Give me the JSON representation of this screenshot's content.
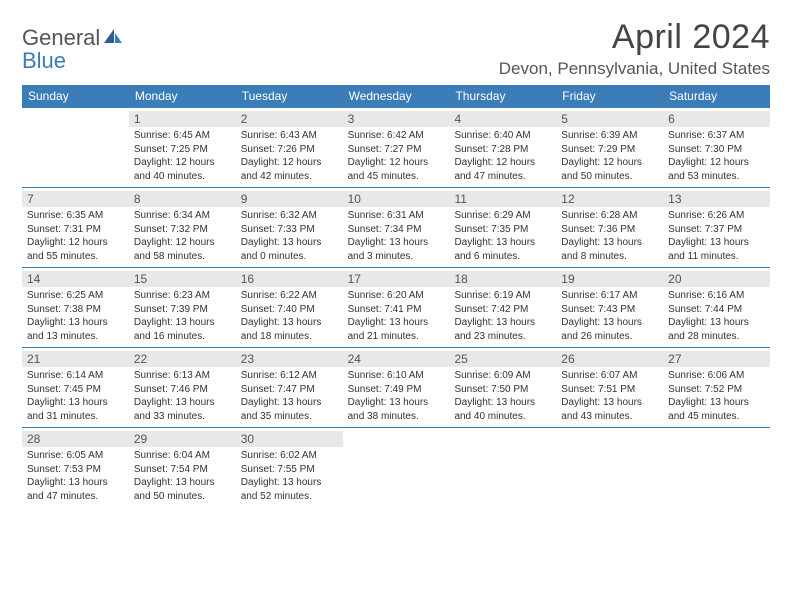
{
  "logo": {
    "line1": "General",
    "line2": "Blue"
  },
  "title": "April 2024",
  "location": "Devon, Pennsylvania, United States",
  "colors": {
    "header_bg": "#3a7db8",
    "daynum_bg": "#e8e8e8",
    "page_bg": "#ffffff",
    "text": "#333333",
    "title_text": "#444444"
  },
  "day_names": [
    "Sunday",
    "Monday",
    "Tuesday",
    "Wednesday",
    "Thursday",
    "Friday",
    "Saturday"
  ],
  "weeks": [
    [
      {
        "n": "",
        "lines": []
      },
      {
        "n": "1",
        "lines": [
          "Sunrise: 6:45 AM",
          "Sunset: 7:25 PM",
          "Daylight: 12 hours",
          "and 40 minutes."
        ]
      },
      {
        "n": "2",
        "lines": [
          "Sunrise: 6:43 AM",
          "Sunset: 7:26 PM",
          "Daylight: 12 hours",
          "and 42 minutes."
        ]
      },
      {
        "n": "3",
        "lines": [
          "Sunrise: 6:42 AM",
          "Sunset: 7:27 PM",
          "Daylight: 12 hours",
          "and 45 minutes."
        ]
      },
      {
        "n": "4",
        "lines": [
          "Sunrise: 6:40 AM",
          "Sunset: 7:28 PM",
          "Daylight: 12 hours",
          "and 47 minutes."
        ]
      },
      {
        "n": "5",
        "lines": [
          "Sunrise: 6:39 AM",
          "Sunset: 7:29 PM",
          "Daylight: 12 hours",
          "and 50 minutes."
        ]
      },
      {
        "n": "6",
        "lines": [
          "Sunrise: 6:37 AM",
          "Sunset: 7:30 PM",
          "Daylight: 12 hours",
          "and 53 minutes."
        ]
      }
    ],
    [
      {
        "n": "7",
        "lines": [
          "Sunrise: 6:35 AM",
          "Sunset: 7:31 PM",
          "Daylight: 12 hours",
          "and 55 minutes."
        ]
      },
      {
        "n": "8",
        "lines": [
          "Sunrise: 6:34 AM",
          "Sunset: 7:32 PM",
          "Daylight: 12 hours",
          "and 58 minutes."
        ]
      },
      {
        "n": "9",
        "lines": [
          "Sunrise: 6:32 AM",
          "Sunset: 7:33 PM",
          "Daylight: 13 hours",
          "and 0 minutes."
        ]
      },
      {
        "n": "10",
        "lines": [
          "Sunrise: 6:31 AM",
          "Sunset: 7:34 PM",
          "Daylight: 13 hours",
          "and 3 minutes."
        ]
      },
      {
        "n": "11",
        "lines": [
          "Sunrise: 6:29 AM",
          "Sunset: 7:35 PM",
          "Daylight: 13 hours",
          "and 6 minutes."
        ]
      },
      {
        "n": "12",
        "lines": [
          "Sunrise: 6:28 AM",
          "Sunset: 7:36 PM",
          "Daylight: 13 hours",
          "and 8 minutes."
        ]
      },
      {
        "n": "13",
        "lines": [
          "Sunrise: 6:26 AM",
          "Sunset: 7:37 PM",
          "Daylight: 13 hours",
          "and 11 minutes."
        ]
      }
    ],
    [
      {
        "n": "14",
        "lines": [
          "Sunrise: 6:25 AM",
          "Sunset: 7:38 PM",
          "Daylight: 13 hours",
          "and 13 minutes."
        ]
      },
      {
        "n": "15",
        "lines": [
          "Sunrise: 6:23 AM",
          "Sunset: 7:39 PM",
          "Daylight: 13 hours",
          "and 16 minutes."
        ]
      },
      {
        "n": "16",
        "lines": [
          "Sunrise: 6:22 AM",
          "Sunset: 7:40 PM",
          "Daylight: 13 hours",
          "and 18 minutes."
        ]
      },
      {
        "n": "17",
        "lines": [
          "Sunrise: 6:20 AM",
          "Sunset: 7:41 PM",
          "Daylight: 13 hours",
          "and 21 minutes."
        ]
      },
      {
        "n": "18",
        "lines": [
          "Sunrise: 6:19 AM",
          "Sunset: 7:42 PM",
          "Daylight: 13 hours",
          "and 23 minutes."
        ]
      },
      {
        "n": "19",
        "lines": [
          "Sunrise: 6:17 AM",
          "Sunset: 7:43 PM",
          "Daylight: 13 hours",
          "and 26 minutes."
        ]
      },
      {
        "n": "20",
        "lines": [
          "Sunrise: 6:16 AM",
          "Sunset: 7:44 PM",
          "Daylight: 13 hours",
          "and 28 minutes."
        ]
      }
    ],
    [
      {
        "n": "21",
        "lines": [
          "Sunrise: 6:14 AM",
          "Sunset: 7:45 PM",
          "Daylight: 13 hours",
          "and 31 minutes."
        ]
      },
      {
        "n": "22",
        "lines": [
          "Sunrise: 6:13 AM",
          "Sunset: 7:46 PM",
          "Daylight: 13 hours",
          "and 33 minutes."
        ]
      },
      {
        "n": "23",
        "lines": [
          "Sunrise: 6:12 AM",
          "Sunset: 7:47 PM",
          "Daylight: 13 hours",
          "and 35 minutes."
        ]
      },
      {
        "n": "24",
        "lines": [
          "Sunrise: 6:10 AM",
          "Sunset: 7:49 PM",
          "Daylight: 13 hours",
          "and 38 minutes."
        ]
      },
      {
        "n": "25",
        "lines": [
          "Sunrise: 6:09 AM",
          "Sunset: 7:50 PM",
          "Daylight: 13 hours",
          "and 40 minutes."
        ]
      },
      {
        "n": "26",
        "lines": [
          "Sunrise: 6:07 AM",
          "Sunset: 7:51 PM",
          "Daylight: 13 hours",
          "and 43 minutes."
        ]
      },
      {
        "n": "27",
        "lines": [
          "Sunrise: 6:06 AM",
          "Sunset: 7:52 PM",
          "Daylight: 13 hours",
          "and 45 minutes."
        ]
      }
    ],
    [
      {
        "n": "28",
        "lines": [
          "Sunrise: 6:05 AM",
          "Sunset: 7:53 PM",
          "Daylight: 13 hours",
          "and 47 minutes."
        ]
      },
      {
        "n": "29",
        "lines": [
          "Sunrise: 6:04 AM",
          "Sunset: 7:54 PM",
          "Daylight: 13 hours",
          "and 50 minutes."
        ]
      },
      {
        "n": "30",
        "lines": [
          "Sunrise: 6:02 AM",
          "Sunset: 7:55 PM",
          "Daylight: 13 hours",
          "and 52 minutes."
        ]
      },
      {
        "n": "",
        "lines": []
      },
      {
        "n": "",
        "lines": []
      },
      {
        "n": "",
        "lines": []
      },
      {
        "n": "",
        "lines": []
      }
    ]
  ]
}
